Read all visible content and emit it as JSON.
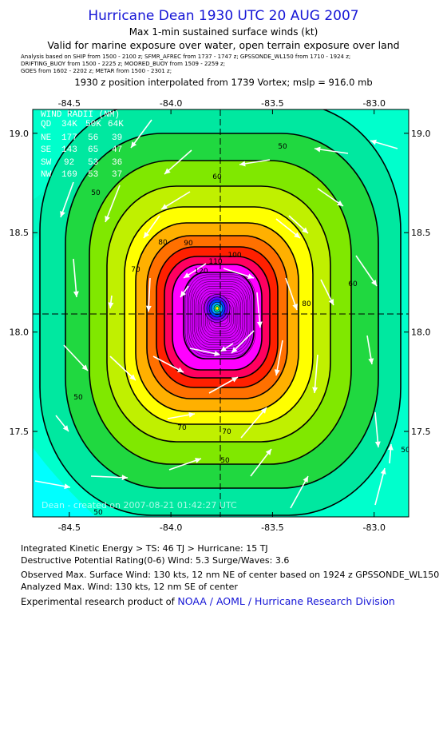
{
  "header": {
    "title": "Hurricane Dean 1930 UTC 20 AUG 2007",
    "subtitle": "Max 1-min sustained surface winds (kt)",
    "valid": "Valid for marine exposure over water, open terrain exposure over land",
    "analysis_line1": "Analysis based on  SHIP from 1500 - 2100 z;  SFMR_AFREC from 1737 - 1747 z;  GPSSONDE_WL150 from 1710 - 1924 z;",
    "analysis_line2": "DRIFTING_BUOY from 1500 - 2225 z;   MOORED_BUOY from 1509 - 2259 z;",
    "analysis_line3": "GOES from 1602 - 2202 z;   METAR from 1500 - 2301 z;",
    "interpolation": "1930 z position interpolated from 1739 Vortex; mslp = 916.0 mb"
  },
  "map": {
    "lon_ticks": [
      "-84.5",
      "-84.0",
      "-83.5",
      "-83.0"
    ],
    "lat_ticks": [
      "19.0",
      "18.5",
      "18.0",
      "17.5"
    ],
    "lon_range": [
      -84.68,
      -82.83
    ],
    "lat_range": [
      17.07,
      19.12
    ],
    "center": {
      "lon": -83.7,
      "lat": 18.08
    },
    "contour_labels": [
      "50",
      "50",
      "50",
      "50",
      "50",
      "50",
      "60",
      "60",
      "70",
      "70",
      "70",
      "80",
      "80",
      "90",
      "100",
      "110",
      "120"
    ],
    "watermark": "Dean  - created on 2007-08-21 01:42:27 UTC",
    "colors": {
      "cyan": "#00ffff",
      "aqua": "#00ffcc",
      "turquoise": "#00e8a0",
      "green": "#20d840",
      "lightgreen": "#80e800",
      "yellowgreen": "#c0f000",
      "yellow": "#ffff00",
      "orange": "#ffb000",
      "darkorange": "#ff7000",
      "red": "#ff2000",
      "pinkred": "#ff0060",
      "magenta": "#ff00ff",
      "violet": "#d800ff",
      "purple": "#a000ff"
    },
    "wind_radii": {
      "header": "WIND RADII (NM)",
      "columns": [
        "QD",
        "34K",
        "50K",
        "64K"
      ],
      "rows": [
        [
          "NE",
          "177",
          "56",
          "39"
        ],
        [
          "SE",
          "143",
          "65",
          "47"
        ],
        [
          "SW",
          "92",
          "53",
          "36"
        ],
        [
          "NW",
          "169",
          "53",
          "37"
        ]
      ]
    }
  },
  "stats": {
    "ike": "Integrated Kinetic Energy > TS: 46 TJ   > Hurricane: 15 TJ",
    "dpr": "Destructive Potential Rating(0-6)   Wind: 5.3 Surge/Waves: 3.6",
    "observed": "Observed Max. Surface Wind: 130 kts, 12 nm NE of center based on 1924 z GPSSONDE_WL150",
    "analyzed": "Analyzed Max. Wind: 130 kts, 12 nm SE of center",
    "credit_prefix": "Experimental research product of ",
    "credit_org": "NOAA / AOML / Hurricane Research Division"
  }
}
